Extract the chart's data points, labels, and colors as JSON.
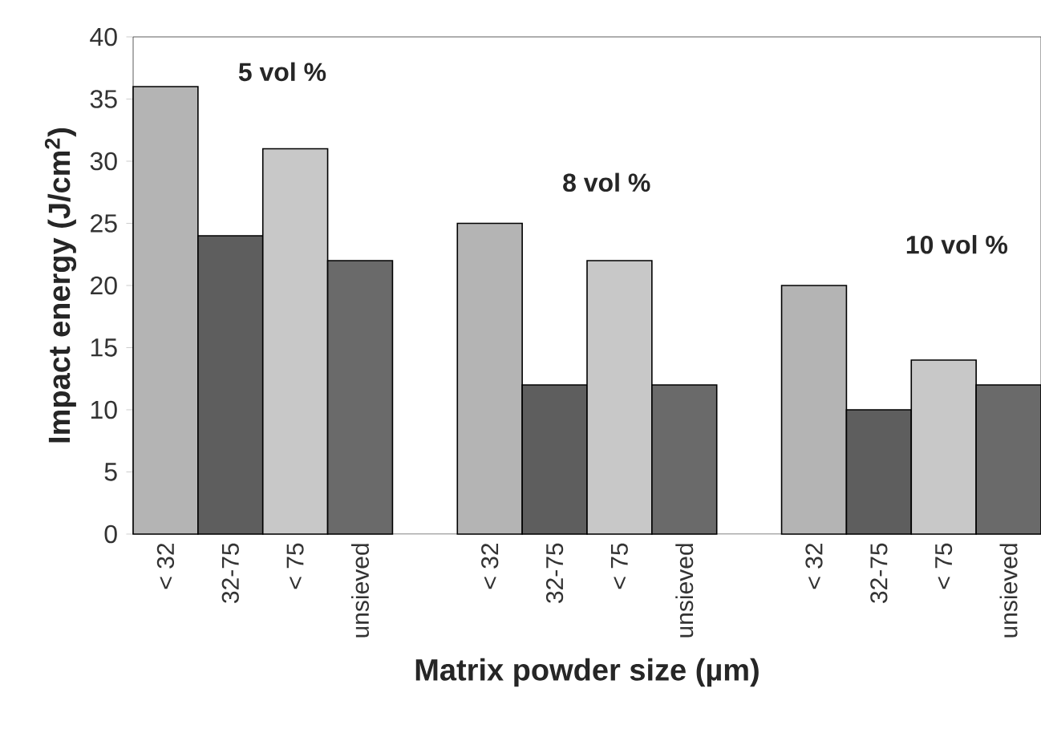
{
  "chart_data": {
    "type": "bar",
    "xlabel": "Matrix powder size (µm)",
    "ylabel": "Impact energy (J/cm$^{2}$)",
    "categories": [
      "< 32",
      "32-75",
      "< 75",
      "unsieved",
      null,
      "< 32",
      "32-75",
      "< 75",
      "unsieved",
      null,
      "< 32",
      "32-75",
      "< 75",
      "unsieved"
    ],
    "values": [
      36,
      24,
      31,
      22,
      null,
      25,
      12,
      22,
      12,
      null,
      20,
      10,
      14,
      12
    ],
    "colors": [
      "#b4b4b4",
      "#5e5e5e",
      "#c8c8c8",
      "#6a6a6a",
      null,
      "#b4b4b4",
      "#5e5e5e",
      "#c8c8c8",
      "#6a6a6a",
      null,
      "#b4b4b4",
      "#5e5e5e",
      "#c8c8c8",
      "#6a6a6a"
    ],
    "annotations": [
      "5 vol %",
      "8 vol %",
      "10 vol %"
    ],
    "ylim": [
      0,
      40
    ],
    "yticks": [
      0,
      5,
      10,
      15,
      20,
      25,
      30,
      35,
      40
    ],
    "grid": false
  }
}
